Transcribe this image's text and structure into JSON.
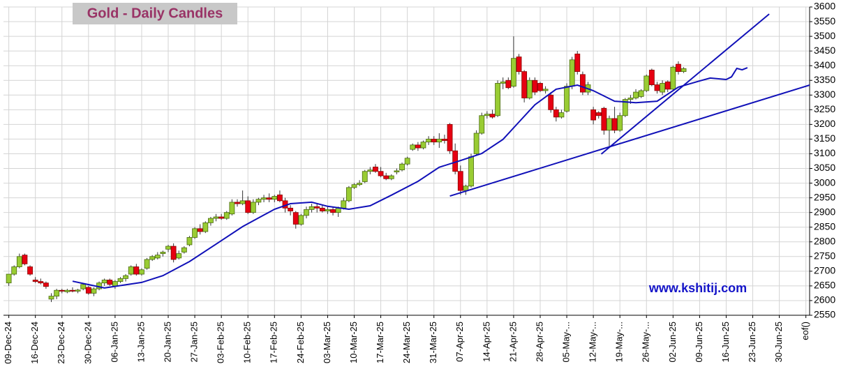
{
  "chart_data": {
    "type": "candlestick",
    "title": "Gold - Daily Candles",
    "annotation": "www.kshitij.com",
    "ylim": [
      2550,
      3600
    ],
    "yticks": [
      2550,
      2600,
      2650,
      2700,
      2750,
      2800,
      2850,
      2900,
      2950,
      3000,
      3050,
      3100,
      3150,
      3200,
      3250,
      3300,
      3350,
      3400,
      3450,
      3500,
      3550,
      3600
    ],
    "xlim": [
      -1,
      150.7
    ],
    "xticks": [
      {
        "value": 0,
        "label": "09-Dec-24"
      },
      {
        "value": 5,
        "label": "16-Dec-24"
      },
      {
        "value": 10,
        "label": "23-Dec-24"
      },
      {
        "value": 15,
        "label": "30-Dec-24"
      },
      {
        "value": 20,
        "label": "06-Jan-25"
      },
      {
        "value": 25,
        "label": "13-Jan-25"
      },
      {
        "value": 30,
        "label": "20-Jan-25"
      },
      {
        "value": 35,
        "label": "27-Jan-25"
      },
      {
        "value": 40,
        "label": "03-Feb-25"
      },
      {
        "value": 45,
        "label": "10-Feb-25"
      },
      {
        "value": 50,
        "label": "17-Feb-25"
      },
      {
        "value": 55,
        "label": "24-Feb-25"
      },
      {
        "value": 60,
        "label": "03-Mar-25"
      },
      {
        "value": 65,
        "label": "10-Mar-25"
      },
      {
        "value": 70,
        "label": "17-Mar-25"
      },
      {
        "value": 75,
        "label": "24-Mar-25"
      },
      {
        "value": 80,
        "label": "31-Mar-25"
      },
      {
        "value": 85,
        "label": "07-Apr-25"
      },
      {
        "value": 90,
        "label": "14-Apr-25"
      },
      {
        "value": 95,
        "label": "21-Apr-25"
      },
      {
        "value": 100,
        "label": "28-Apr-25"
      },
      {
        "value": 105,
        "label": "05-May-..."
      },
      {
        "value": 110,
        "label": "12-May-..."
      },
      {
        "value": 115,
        "label": "19-May-..."
      },
      {
        "value": 120,
        "label": "26-May-..."
      },
      {
        "value": 125,
        "label": "02-Jun-25"
      },
      {
        "value": 130,
        "label": "09-Jun-25"
      },
      {
        "value": 135,
        "label": "16-Jun-25"
      },
      {
        "value": 140,
        "label": "23-Jun-25"
      },
      {
        "value": 145,
        "label": "30-Jun-25"
      },
      {
        "value": 150,
        "label": "eof()"
      }
    ],
    "grid": true,
    "up_color": "#99cc33",
    "down_color": "#e60012",
    "open": [
      2660,
      2690,
      2715,
      2755,
      2715,
      2670,
      2665,
      2660,
      2605,
      2615,
      2635,
      2630,
      2635,
      2632,
      2640,
      2645,
      2625,
      2640,
      2660,
      2670,
      2650,
      2665,
      2675,
      2690,
      2715,
      2690,
      2710,
      2740,
      2745,
      2760,
      2775,
      2785,
      2745,
      2765,
      2790,
      2815,
      2845,
      2835,
      2865,
      2880,
      2885,
      2880,
      2895,
      2935,
      2930,
      2940,
      2900,
      2935,
      2945,
      2950,
      2945,
      2960,
      2940,
      2915,
      2900,
      2860,
      2890,
      2910,
      2920,
      2915,
      2905,
      2910,
      2900,
      2915,
      2940,
      2985,
      2995,
      3005,
      3040,
      3055,
      3040,
      3025,
      3015,
      3038,
      3045,
      3065,
      3115,
      3130,
      3120,
      3140,
      3150,
      3140,
      3150,
      3200,
      3110,
      3040,
      2975,
      2990,
      3100,
      3170,
      3230,
      3235,
      3230,
      3340,
      3350,
      3330,
      3430,
      3380,
      3290,
      3350,
      3340,
      3315,
      3300,
      3250,
      3225,
      3245,
      3330,
      3440,
      3370,
      3310,
      3250,
      3240,
      3255,
      3180,
      3220,
      3180,
      3230,
      3285,
      3290,
      3295,
      3315,
      3385,
      3335,
      3310,
      3345,
      3320,
      3405,
      3380
    ],
    "high": [
      2690,
      2720,
      2760,
      2760,
      2720,
      2680,
      2675,
      2665,
      2625,
      2640,
      2640,
      2640,
      2645,
      2640,
      2660,
      2650,
      2645,
      2665,
      2675,
      2675,
      2670,
      2680,
      2690,
      2720,
      2725,
      2710,
      2745,
      2755,
      2765,
      2770,
      2790,
      2795,
      2770,
      2785,
      2820,
      2850,
      2860,
      2870,
      2885,
      2895,
      2895,
      2905,
      2945,
      2945,
      2975,
      2955,
      2945,
      2950,
      2960,
      2965,
      2960,
      2975,
      2950,
      2925,
      2905,
      2895,
      2920,
      2930,
      2930,
      2925,
      2920,
      2920,
      2920,
      2950,
      2990,
      3000,
      3010,
      3045,
      3055,
      3065,
      3055,
      3035,
      3030,
      3050,
      3070,
      3090,
      3135,
      3140,
      3145,
      3160,
      3160,
      3170,
      3165,
      3205,
      3135,
      3060,
      2995,
      3100,
      3180,
      3240,
      3245,
      3250,
      3350,
      3360,
      3360,
      3500,
      3440,
      3385,
      3360,
      3360,
      3345,
      3330,
      3310,
      3260,
      3250,
      3340,
      3430,
      3450,
      3380,
      3345,
      3260,
      3245,
      3260,
      3230,
      3260,
      3240,
      3290,
      3300,
      3320,
      3320,
      3370,
      3390,
      3345,
      3350,
      3350,
      3400,
      3415,
      3395
    ],
    "low": [
      2650,
      2685,
      2710,
      2720,
      2685,
      2660,
      2655,
      2640,
      2595,
      2605,
      2625,
      2625,
      2628,
      2625,
      2635,
      2620,
      2615,
      2635,
      2650,
      2650,
      2640,
      2660,
      2665,
      2685,
      2685,
      2685,
      2705,
      2735,
      2740,
      2750,
      2765,
      2730,
      2740,
      2760,
      2785,
      2810,
      2825,
      2830,
      2855,
      2870,
      2875,
      2875,
      2890,
      2920,
      2925,
      2895,
      2895,
      2925,
      2935,
      2935,
      2935,
      2935,
      2900,
      2890,
      2845,
      2855,
      2880,
      2900,
      2900,
      2900,
      2895,
      2890,
      2885,
      2910,
      2935,
      2980,
      2990,
      3000,
      3030,
      3035,
      3020,
      3010,
      3010,
      3030,
      3040,
      3060,
      3110,
      3110,
      3115,
      3130,
      3130,
      3120,
      3135,
      3100,
      3030,
      2960,
      2960,
      2985,
      3095,
      3165,
      3220,
      3220,
      3225,
      3320,
      3320,
      3325,
      3370,
      3275,
      3285,
      3300,
      3310,
      3305,
      3240,
      3210,
      3220,
      3240,
      3320,
      3370,
      3300,
      3300,
      3200,
      3220,
      3165,
      3120,
      3170,
      3175,
      3225,
      3270,
      3285,
      3290,
      3310,
      3330,
      3305,
      3300,
      3310,
      3315,
      3370,
      3375
    ],
    "close": [
      2690,
      2715,
      2750,
      2725,
      2690,
      2665,
      2660,
      2648,
      2615,
      2635,
      2632,
      2635,
      2632,
      2636,
      2655,
      2625,
      2640,
      2660,
      2670,
      2655,
      2665,
      2675,
      2685,
      2715,
      2690,
      2705,
      2740,
      2750,
      2755,
      2765,
      2785,
      2740,
      2760,
      2780,
      2815,
      2845,
      2835,
      2865,
      2880,
      2885,
      2880,
      2900,
      2935,
      2930,
      2940,
      2900,
      2935,
      2945,
      2950,
      2945,
      2955,
      2940,
      2915,
      2905,
      2860,
      2890,
      2910,
      2920,
      2915,
      2905,
      2910,
      2900,
      2915,
      2940,
      2985,
      2995,
      3000,
      3040,
      3045,
      3040,
      3025,
      3015,
      3025,
      3042,
      3065,
      3085,
      3130,
      3120,
      3140,
      3150,
      3140,
      3150,
      3145,
      3110,
      3040,
      2975,
      2990,
      3090,
      3170,
      3230,
      3235,
      3225,
      3340,
      3345,
      3325,
      3425,
      3380,
      3290,
      3350,
      3310,
      3315,
      3320,
      3250,
      3225,
      3240,
      3330,
      3420,
      3380,
      3310,
      3335,
      3215,
      3230,
      3180,
      3220,
      3180,
      3230,
      3285,
      3290,
      3310,
      3315,
      3365,
      3335,
      3315,
      3340,
      3320,
      3395,
      3380,
      3390
    ],
    "series": [
      {
        "color": "#1010b8",
        "x": [
          12,
          18,
          25,
          29,
          34,
          39,
          44,
          50,
          53,
          57,
          60,
          64,
          68,
          72,
          77,
          81,
          85,
          89,
          93,
          96,
          99,
          103,
          107,
          110,
          114,
          118,
          122,
          126,
          130,
          132,
          135,
          136,
          137,
          138,
          139
        ],
        "values": [
          2666,
          2643,
          2662,
          2685,
          2733,
          2792,
          2852,
          2911,
          2930,
          2935,
          2921,
          2911,
          2923,
          2959,
          3006,
          3054,
          3077,
          3101,
          3149,
          3208,
          3267,
          3320,
          3334,
          3315,
          3279,
          3274,
          3279,
          3327,
          3348,
          3358,
          3353,
          3362,
          3391,
          3386,
          3393
        ]
      },
      {
        "color": "#1010b8",
        "x": [
          83,
          150.7
        ],
        "values": [
          2956,
          3334
        ]
      },
      {
        "color": "#1010b8",
        "x": [
          111.5,
          143.1
        ],
        "values": [
          3099,
          3576
        ]
      }
    ]
  }
}
